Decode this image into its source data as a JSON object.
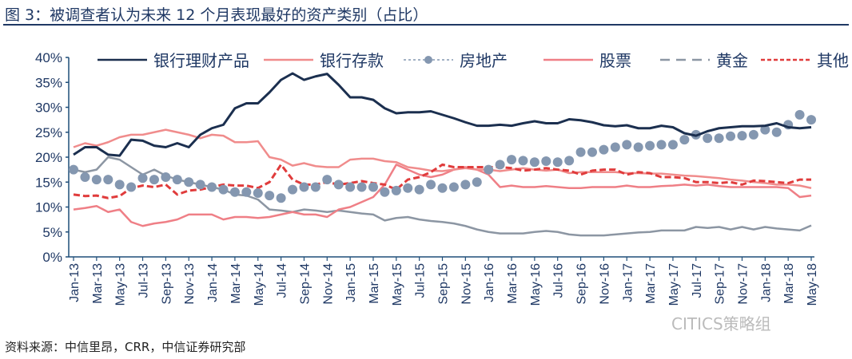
{
  "chart_data": {
    "type": "line",
    "title": "图 3：被调查者认为未来 12 个月表现最好的资产类别（占比）",
    "ylim": [
      0,
      40
    ],
    "yticks": [
      "0%",
      "5%",
      "10%",
      "15%",
      "20%",
      "25%",
      "30%",
      "35%",
      "40%"
    ],
    "xtick_labels": [
      "Jan-13",
      "Mar-13",
      "May-13",
      "Jul-13",
      "Sep-13",
      "Nov-13",
      "Jan-14",
      "Mar-14",
      "May-14",
      "Jul-14",
      "Sep-14",
      "Nov-14",
      "Jan-15",
      "Mar-15",
      "May-15",
      "Jul-15",
      "Sep-15",
      "Nov-15",
      "Jan-16",
      "Mar-16",
      "May-16",
      "Jul-16",
      "Sep-16",
      "Nov-16",
      "Jan-17",
      "Mar-17",
      "May-17",
      "Jul-17",
      "Sep-17",
      "Nov-17",
      "Jan-18",
      "Mar-18",
      "May-18"
    ],
    "x_range": [
      "Jan-13",
      "May-18"
    ],
    "frequency": "monthly",
    "legend_position": "top",
    "grid": false,
    "series": [
      {
        "name": "银行理财产品",
        "color": "#1b2f4f",
        "style": "solid",
        "values": [
          20.5,
          22,
          22,
          20.5,
          20.3,
          23.5,
          23.3,
          22.3,
          22,
          22.8,
          22,
          24.5,
          25.8,
          26.5,
          29.8,
          30.8,
          30.8,
          33,
          35.5,
          36.8,
          35.5,
          36.2,
          36.7,
          34.5,
          32,
          32,
          31.5,
          29.8,
          28.8,
          29,
          29,
          29.2,
          28.5,
          27.8,
          27,
          26.3,
          26.3,
          26.5,
          26.3,
          26.8,
          27.2,
          26.8,
          26.8,
          27.6,
          27.4,
          27,
          26.4,
          26.2,
          26.4,
          25.8,
          25.8,
          26.3,
          26,
          24.8,
          24.3,
          25.2,
          25.8,
          26,
          26.2,
          26.2,
          26.3,
          26.8,
          26,
          25.8,
          26
        ]
      },
      {
        "name": "银行存款",
        "color": "#f08c8c",
        "style": "solid",
        "values": [
          22,
          22.8,
          22.3,
          23,
          24,
          24.5,
          24.5,
          25,
          25.5,
          25,
          24.5,
          23.8,
          24.5,
          24.3,
          23,
          23,
          23.2,
          20,
          19.5,
          18.3,
          18.8,
          18.2,
          18,
          18,
          19.5,
          19.7,
          19.7,
          19.2,
          19,
          18,
          17.7,
          17.3,
          17.2,
          17.5,
          17.8,
          17.5,
          17.5,
          17.2,
          17.5,
          17.8,
          17.5,
          17.3,
          17.5,
          16.8,
          17,
          17,
          17,
          17,
          16.8,
          16.8,
          16.7,
          16.7,
          16.5,
          16.3,
          16.2,
          16,
          15.8,
          15.5,
          15.3,
          15,
          14.8,
          14.5,
          14.5,
          14.3,
          13.8
        ]
      },
      {
        "name": "房地产",
        "color": "#8497b0",
        "style": "dots",
        "values": [
          17.5,
          16,
          15.5,
          15.5,
          14.5,
          14,
          15.8,
          15.5,
          16,
          15.5,
          15,
          14.5,
          14,
          13.5,
          13,
          13,
          12.8,
          12.3,
          11.8,
          13.5,
          14,
          14,
          15.5,
          14.5,
          14,
          14,
          14,
          13,
          13.3,
          13.8,
          13.5,
          14.5,
          13.8,
          14,
          14.5,
          15,
          17.5,
          18.5,
          19.5,
          19.3,
          19,
          19.2,
          19,
          19.3,
          21,
          21,
          21.5,
          22,
          22.5,
          22,
          22.3,
          22.5,
          22.5,
          23.5,
          24.5,
          23.8,
          23.8,
          24.2,
          24.3,
          24.5,
          25.5,
          25,
          26.5,
          28.5,
          27.5
        ]
      },
      {
        "name": "股票",
        "color": "#ef7f86",
        "style": "solid",
        "values": [
          9.5,
          9.8,
          10.2,
          9,
          9.5,
          7,
          6.2,
          6.7,
          7,
          7.5,
          8.5,
          8.5,
          8.5,
          7.5,
          8,
          8,
          7.8,
          8,
          8.5,
          9,
          8.5,
          8.5,
          8,
          9.5,
          10,
          11,
          12,
          14.5,
          18.5,
          17.5,
          16.5,
          16,
          16.5,
          17.5,
          18,
          17.5,
          16.5,
          14,
          14.3,
          14,
          14,
          14.2,
          14,
          13.8,
          13.8,
          14,
          14,
          14,
          14.3,
          14,
          14,
          14.2,
          14.3,
          14.5,
          14.3,
          14.5,
          14.2,
          14,
          14,
          14,
          14,
          14,
          13.8,
          12,
          12.3
        ]
      },
      {
        "name": "黄金",
        "color": "#8c96a3",
        "style": "dashed",
        "values": [
          17.5,
          17,
          17.5,
          20,
          19.5,
          18,
          16.5,
          17.5,
          16.3,
          15.5,
          15,
          14.5,
          14,
          13.5,
          12.5,
          12.3,
          11.5,
          9.5,
          9.3,
          9,
          9.5,
          9.3,
          9,
          9.3,
          9,
          8.7,
          8.5,
          7.3,
          7.8,
          8,
          7.5,
          7.2,
          7,
          6.7,
          6.2,
          5.5,
          5,
          4.7,
          4.7,
          4.7,
          5,
          5.2,
          5,
          4.5,
          4.3,
          4.3,
          4.3,
          4.5,
          4.7,
          4.9,
          5,
          5.3,
          5.3,
          5.3,
          6,
          5.8,
          6,
          5.5,
          6,
          5.5,
          6,
          5.7,
          5.5,
          5.3,
          6.3
        ]
      },
      {
        "name": "其他",
        "color": "#e03c3c",
        "style": "shortdash",
        "values": [
          12.5,
          12.2,
          12.3,
          11.8,
          12.2,
          13.8,
          14.3,
          14,
          14.5,
          12.5,
          13.3,
          13.5,
          14,
          14.5,
          14.3,
          14.3,
          13.8,
          15,
          18.5,
          15.5,
          14.5,
          14.5,
          15,
          14.5,
          14.8,
          15.2,
          14.8,
          14.5,
          13.5,
          15.5,
          16,
          17,
          18.5,
          18,
          18,
          18,
          18,
          18,
          17.8,
          17.3,
          17.5,
          17.8,
          17.5,
          17.3,
          16.5,
          17.3,
          17.5,
          17.5,
          16.5,
          17,
          16.8,
          16,
          16,
          15.8,
          15,
          15,
          14.8,
          15,
          14.5,
          15.3,
          15.2,
          15,
          14.8,
          15.5,
          15.5
        ]
      }
    ]
  },
  "source": "资料来源：中信里昂，CRR，中信证券研究部",
  "watermark": "CITICS策略组"
}
